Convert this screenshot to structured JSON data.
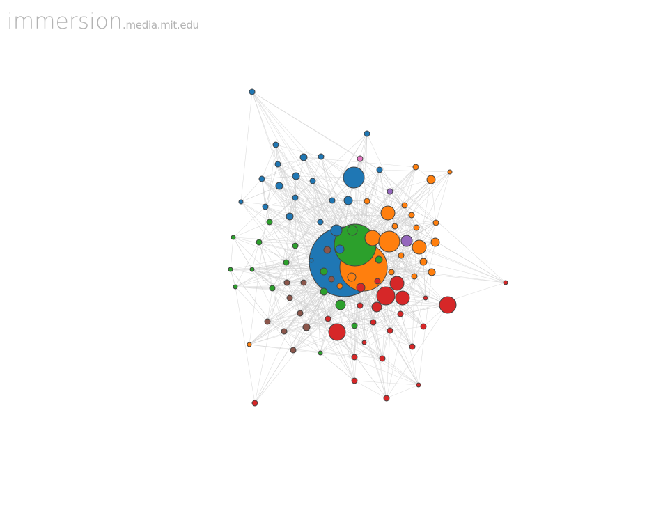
{
  "logo": {
    "brand": "immersion",
    "domain": ".media.mit.edu"
  },
  "graph": {
    "palette": {
      "blue": "#1f77b4",
      "green": "#2ca02c",
      "orange": "#ff7f0e",
      "red": "#d62728",
      "purple": "#9467bd",
      "brown": "#8c564b",
      "pink": "#e377c2"
    },
    "edge_color": "#cfcfcf",
    "node_stroke": "#444444",
    "node_count": 104
  }
}
